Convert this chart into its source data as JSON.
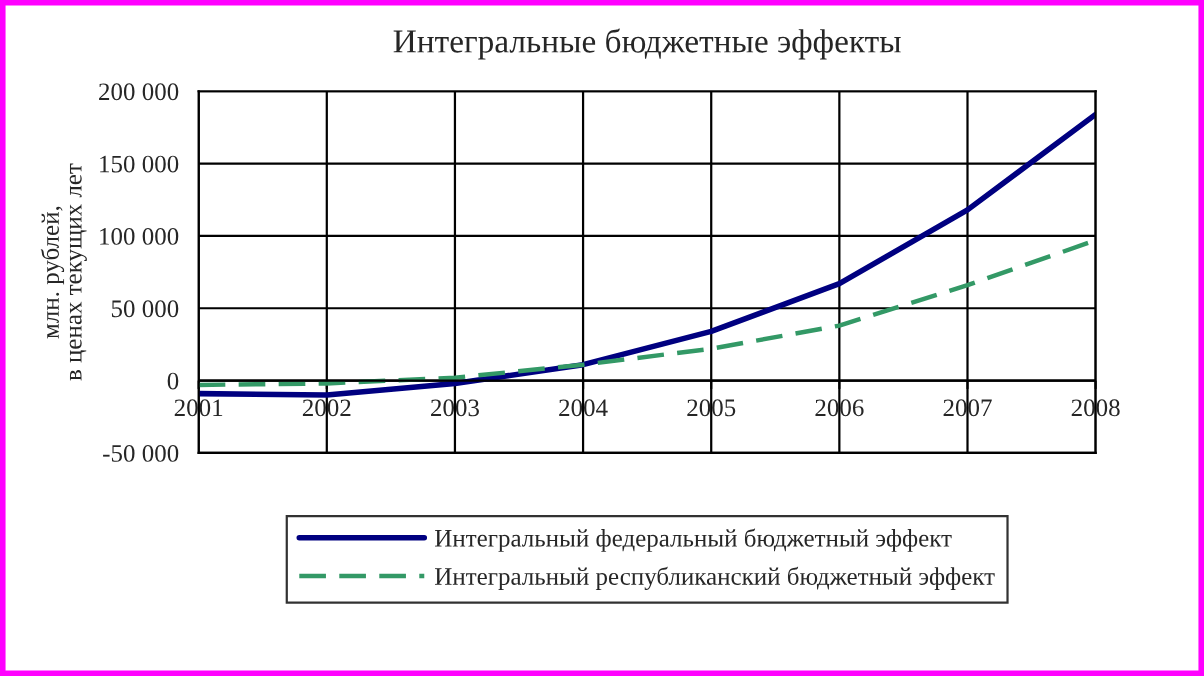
{
  "chart_data": {
    "type": "line",
    "title": "Интегральные бюджетные эффекты",
    "ylabel": "млн. рублей,\nв ценах текущих лет",
    "x": [
      2001,
      2002,
      2003,
      2004,
      2005,
      2006,
      2007,
      2008
    ],
    "xlim": [
      2001,
      2008
    ],
    "xticks": [
      2001,
      2002,
      2003,
      2004,
      2005,
      2006,
      2007,
      2008
    ],
    "ylim": [
      -50000,
      200000
    ],
    "yticks": [
      {
        "value": -50000,
        "label": "-50 000"
      },
      {
        "value": 0,
        "label": "0"
      },
      {
        "value": 50000,
        "label": "50 000"
      },
      {
        "value": 100000,
        "label": "100 000"
      },
      {
        "value": 150000,
        "label": "150 000"
      },
      {
        "value": 200000,
        "label": "200 000"
      }
    ],
    "series": [
      {
        "name": "Интегральный федеральный бюджетный эффект",
        "color": "#000080",
        "line_style": "solid",
        "values": [
          -9000,
          -10000,
          -2000,
          11000,
          34000,
          67000,
          118000,
          184000
        ]
      },
      {
        "name": "Интегральный республиканский бюджетный эффект",
        "color": "#339966",
        "line_style": "dashed",
        "values": [
          -3000,
          -2000,
          2000,
          11000,
          22000,
          38000,
          66000,
          97000
        ]
      }
    ],
    "grid": true,
    "legend": "bottom",
    "marker": "none"
  }
}
